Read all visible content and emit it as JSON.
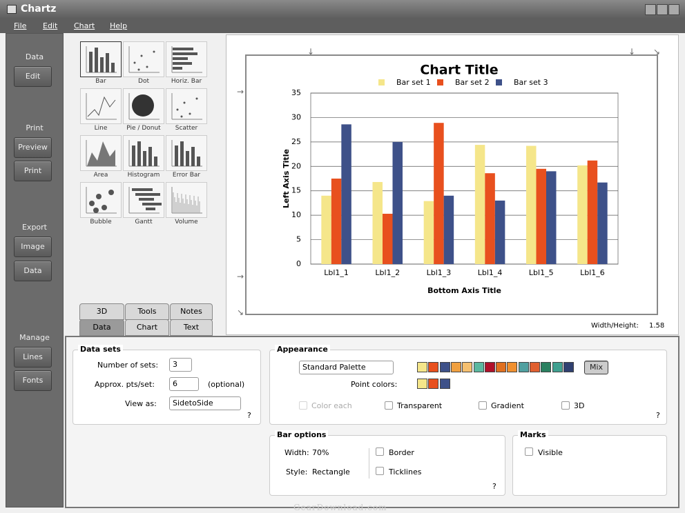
{
  "window": {
    "title": "Chartz"
  },
  "menu": [
    "File",
    "Edit",
    "Chart",
    "Help"
  ],
  "sidebar": [
    {
      "heading": "Data",
      "buttons": [
        "Edit"
      ]
    },
    {
      "heading": "Print",
      "buttons": [
        "Preview",
        "Print"
      ]
    },
    {
      "heading": "Export",
      "buttons": [
        "Image",
        "Data"
      ]
    },
    {
      "heading": "Manage",
      "buttons": [
        "Lines",
        "Fonts"
      ]
    }
  ],
  "chart_types": [
    "Bar",
    "Dot",
    "Horiz. Bar",
    "Line",
    "Pie / Donut",
    "Scatter",
    "Area",
    "Histogram",
    "Error Bar",
    "Bubble",
    "Gantt",
    "Volume"
  ],
  "tabs": [
    "3D",
    "Tools",
    "Notes",
    "Data",
    "Chart",
    "Text"
  ],
  "chart_data": {
    "type": "bar",
    "title": "Chart Title",
    "categories": [
      "Lbl1_1",
      "Lbl1_2",
      "Lbl1_3",
      "Lbl1_4",
      "Lbl1_5",
      "Lbl1_6"
    ],
    "series": [
      {
        "name": "Bar set 1",
        "color": "#f5e68a",
        "values": [
          14,
          16.8,
          12.9,
          24.4,
          24.2,
          20.2
        ]
      },
      {
        "name": "Bar set 2",
        "color": "#e8501e",
        "values": [
          17.5,
          10.3,
          28.9,
          18.6,
          19.5,
          21.2
        ]
      },
      {
        "name": "Bar set 3",
        "color": "#3e5189",
        "values": [
          28.6,
          25,
          14,
          13,
          19,
          16.7
        ]
      }
    ],
    "ylim": [
      0,
      35
    ],
    "yticks": [
      0,
      5,
      10,
      15,
      20,
      25,
      30,
      35
    ],
    "grid": true,
    "x_axis_title": "Bottom Axis Title",
    "y_axis_title": "Left Axis Title"
  },
  "width_height": {
    "label": "Width/Height:",
    "value": 1.58
  },
  "data_sets": {
    "title": "Data sets",
    "number_of_sets": {
      "label": "Number of sets:",
      "value": 3
    },
    "approx_pts": {
      "label": "Approx. pts/set:",
      "value": 6,
      "note": "(optional)"
    },
    "view_as": {
      "label": "View as:",
      "value": "SidetoSide"
    },
    "help": "?"
  },
  "appearance": {
    "title": "Appearance",
    "palette": "Standard Palette",
    "palette_colors": [
      "#f5e68a",
      "#e8501e",
      "#3e5189",
      "#f0a040",
      "#f5c070",
      "#5bb8a0",
      "#b0102a",
      "#e07020",
      "#f09030",
      "#50a0a0",
      "#e06030",
      "#2a8060",
      "#40a090",
      "#304070"
    ],
    "mix": "Mix",
    "point_colors_label": "Point colors:",
    "point_colors": [
      "#f5e68a",
      "#e8501e",
      "#3e5189"
    ],
    "options": [
      "Color each",
      "Transparent",
      "Gradient",
      "3D"
    ],
    "help": "?"
  },
  "bar_options": {
    "title": "Bar options",
    "width_label": "Width:",
    "width": "70%",
    "style_label": "Style:",
    "style": "Rectangle",
    "options": [
      "Border",
      "Ticklines"
    ],
    "help": "?"
  },
  "marks": {
    "title": "Marks",
    "options": [
      "Visible"
    ]
  },
  "watermark": "GearDownload.com"
}
